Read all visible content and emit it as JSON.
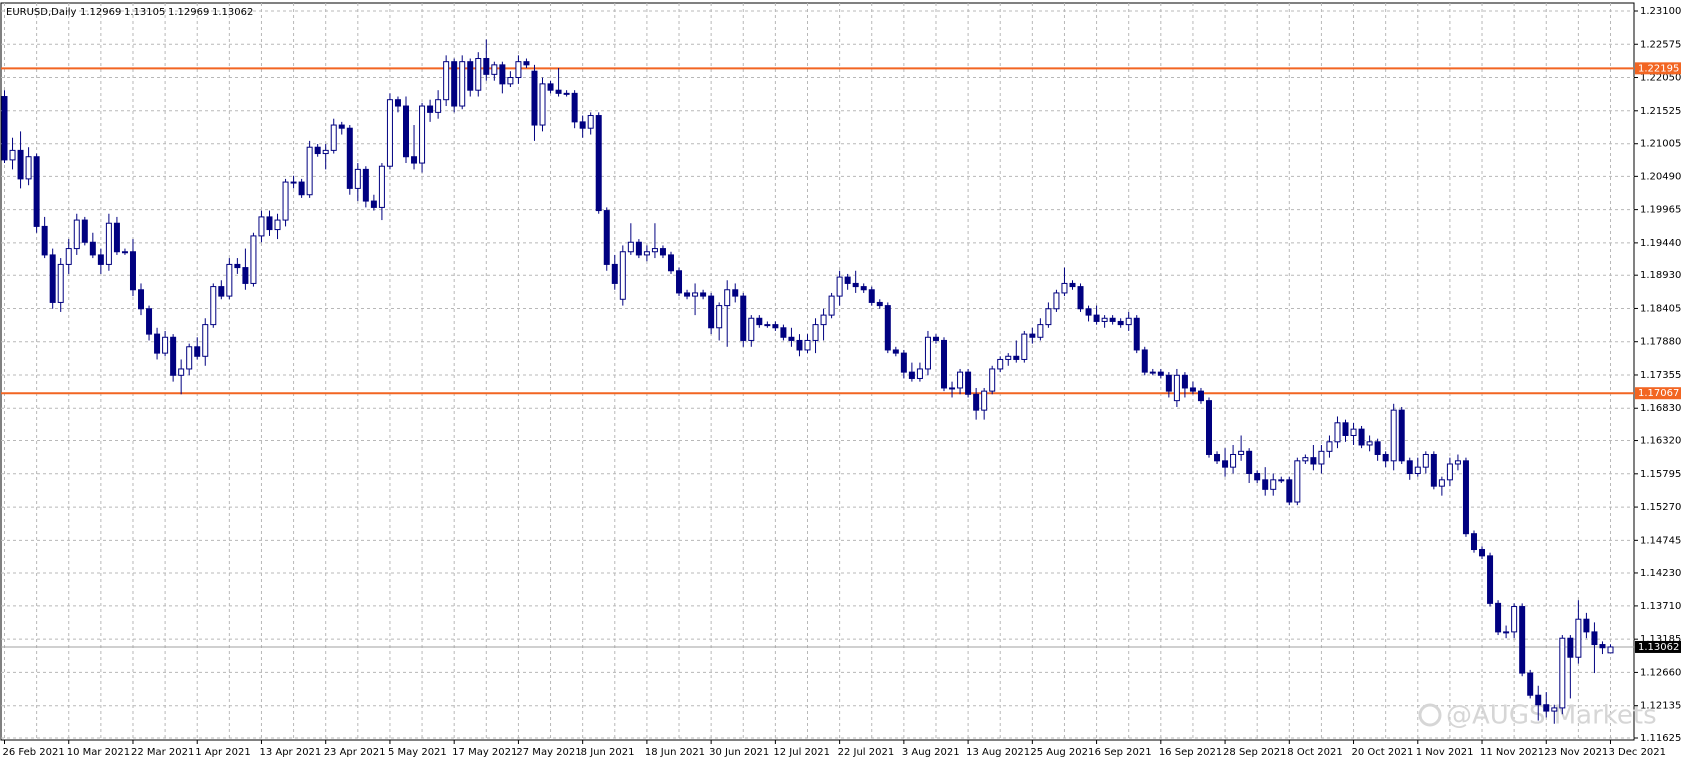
{
  "chart_data": {
    "type": "candlestick",
    "title": "EURUSD,Daily",
    "watermark": "@AUGS Markets",
    "up_color": "#ffffff",
    "down_color": "#000080",
    "wick_color": "#000080",
    "grid": true,
    "ylim": [
      1.11625,
      1.231
    ],
    "yticks": [
      {
        "value": 1.231,
        "label": "1.23100"
      },
      1.22575,
      {
        "value": 1.2205,
        "label": "1.22050"
      },
      1.21525,
      1.21005,
      {
        "value": 1.2049,
        "label": "1.20490"
      },
      1.19965,
      {
        "value": 1.1944,
        "label": "1.19440"
      },
      {
        "value": 1.1893,
        "label": "1.18930"
      },
      1.18405,
      {
        "value": 1.1788,
        "label": "1.17880"
      },
      1.17355,
      {
        "value": 1.1683,
        "label": "1.16830"
      },
      {
        "value": 1.1632,
        "label": "1.16320"
      },
      1.15795,
      {
        "value": 1.1527,
        "label": "1.15270"
      },
      1.14745,
      {
        "value": 1.1423,
        "label": "1.14230"
      },
      {
        "value": 1.1371,
        "label": "1.13710"
      },
      1.13185,
      {
        "value": 1.1266,
        "label": "1.12660"
      },
      1.12135,
      1.11625
    ],
    "hlines": [
      {
        "value": 1.22195,
        "color": "#f26522"
      },
      {
        "value": 1.17067,
        "color": "#f26522"
      }
    ],
    "categories": [
      "26 Feb 2021",
      null,
      null,
      null,
      null,
      null,
      null,
      null,
      "10 Mar 2021",
      null,
      null,
      null,
      null,
      null,
      null,
      null,
      "22 Mar 2021",
      null,
      null,
      null,
      null,
      null,
      null,
      null,
      "1 Apr 2021",
      null,
      null,
      null,
      null,
      null,
      null,
      null,
      "13 Apr 2021",
      null,
      null,
      null,
      null,
      null,
      null,
      null,
      "23 Apr 2021",
      null,
      null,
      null,
      null,
      null,
      null,
      null,
      "5 May 2021",
      null,
      null,
      null,
      null,
      null,
      null,
      null,
      "17 May 2021",
      null,
      null,
      null,
      null,
      null,
      null,
      null,
      "27 May 2021",
      null,
      null,
      null,
      null,
      null,
      null,
      null,
      "8 Jun 2021",
      null,
      null,
      null,
      null,
      null,
      null,
      null,
      "18 Jun 2021",
      null,
      null,
      null,
      null,
      null,
      null,
      null,
      "30 Jun 2021",
      null,
      null,
      null,
      null,
      null,
      null,
      null,
      "12 Jul 2021",
      null,
      null,
      null,
      null,
      null,
      null,
      null,
      "22 Jul 2021",
      null,
      null,
      null,
      null,
      null,
      null,
      null,
      "3 Aug 2021",
      null,
      null,
      null,
      null,
      null,
      null,
      null,
      "13 Aug 2021",
      null,
      null,
      null,
      null,
      null,
      null,
      null,
      "25 Aug 2021",
      null,
      null,
      null,
      null,
      null,
      null,
      null,
      "6 Sep 2021",
      null,
      null,
      null,
      null,
      null,
      null,
      null,
      "16 Sep 2021",
      null,
      null,
      null,
      null,
      null,
      null,
      null,
      "28 Sep 2021",
      null,
      null,
      null,
      null,
      null,
      null,
      null,
      "8 Oct 2021",
      null,
      null,
      null,
      null,
      null,
      null,
      null,
      "20 Oct 2021",
      null,
      null,
      null,
      null,
      null,
      null,
      null,
      "1 Nov 2021",
      null,
      null,
      null,
      null,
      null,
      null,
      null,
      "11 Nov 2021",
      null,
      null,
      null,
      null,
      null,
      null,
      null,
      "23 Nov 2021",
      null,
      null,
      null,
      null,
      null,
      null,
      null,
      "3 Dec 2021"
    ],
    "ohlc": [
      [
        1.2175,
        1.2185,
        1.207,
        1.2075
      ],
      [
        1.2075,
        1.211,
        1.206,
        1.209
      ],
      [
        1.209,
        1.212,
        1.203,
        1.2045
      ],
      [
        1.2045,
        1.2095,
        1.2035,
        1.208
      ],
      [
        1.208,
        1.2085,
        1.196,
        1.197
      ],
      [
        1.197,
        1.1985,
        1.192,
        1.1925
      ],
      [
        1.1925,
        1.1935,
        1.184,
        1.185
      ],
      [
        1.185,
        1.192,
        1.1835,
        1.191
      ],
      [
        1.191,
        1.195,
        1.1895,
        1.1935
      ],
      [
        1.1935,
        1.199,
        1.1925,
        1.198
      ],
      [
        1.198,
        1.1985,
        1.194,
        1.1945
      ],
      [
        1.1945,
        1.196,
        1.192,
        1.1925
      ],
      [
        1.1925,
        1.1935,
        1.1895,
        1.191
      ],
      [
        1.191,
        1.199,
        1.19,
        1.1975
      ],
      [
        1.1975,
        1.1985,
        1.1925,
        1.193
      ],
      [
        1.193,
        1.1935,
        1.1925,
        1.193
      ],
      [
        1.193,
        1.195,
        1.186,
        1.187
      ],
      [
        1.187,
        1.188,
        1.183,
        1.184
      ],
      [
        1.184,
        1.1845,
        1.179,
        1.18
      ],
      [
        1.18,
        1.181,
        1.176,
        1.177
      ],
      [
        1.177,
        1.1805,
        1.1765,
        1.1795
      ],
      [
        1.1795,
        1.18,
        1.1725,
        1.1735
      ],
      [
        1.1735,
        1.176,
        1.1705,
        1.1745
      ],
      [
        1.1745,
        1.1785,
        1.1735,
        1.178
      ],
      [
        1.178,
        1.1795,
        1.176,
        1.1765
      ],
      [
        1.1765,
        1.1825,
        1.175,
        1.1815
      ],
      [
        1.1815,
        1.188,
        1.181,
        1.1875
      ],
      [
        1.1875,
        1.1885,
        1.1855,
        1.186
      ],
      [
        1.186,
        1.192,
        1.1855,
        1.191
      ],
      [
        1.191,
        1.192,
        1.1895,
        1.1905
      ],
      [
        1.1905,
        1.1935,
        1.187,
        1.188
      ],
      [
        1.188,
        1.196,
        1.1875,
        1.1955
      ],
      [
        1.1955,
        1.1995,
        1.1945,
        1.1985
      ],
      [
        1.1985,
        1.1995,
        1.1955,
        1.1965
      ],
      [
        1.1965,
        1.199,
        1.195,
        1.198
      ],
      [
        1.198,
        1.2045,
        1.197,
        1.204
      ],
      [
        1.204,
        1.205,
        1.203,
        1.204
      ],
      [
        1.204,
        1.2045,
        1.2015,
        1.202
      ],
      [
        1.202,
        1.2105,
        1.2015,
        1.2095
      ],
      [
        1.2095,
        1.21,
        1.208,
        1.2085
      ],
      [
        1.2085,
        1.21,
        1.206,
        1.209
      ],
      [
        1.209,
        1.214,
        1.2085,
        1.213
      ],
      [
        1.213,
        1.2135,
        1.2115,
        1.2125
      ],
      [
        1.2125,
        1.213,
        1.202,
        1.203
      ],
      [
        1.203,
        1.207,
        1.201,
        1.206
      ],
      [
        1.206,
        1.2065,
        1.2,
        1.201
      ],
      [
        1.201,
        1.202,
        1.1995,
        1.2
      ],
      [
        1.2,
        1.207,
        1.198,
        1.2065
      ],
      [
        1.2065,
        1.218,
        1.206,
        1.217
      ],
      [
        1.217,
        1.2175,
        1.215,
        1.216
      ],
      [
        1.216,
        1.2175,
        1.207,
        1.208
      ],
      [
        1.208,
        1.213,
        1.206,
        1.207
      ],
      [
        1.207,
        1.2165,
        1.2055,
        1.216
      ],
      [
        1.216,
        1.217,
        1.2135,
        1.215
      ],
      [
        1.215,
        1.2185,
        1.214,
        1.217
      ],
      [
        1.217,
        1.224,
        1.216,
        1.223
      ],
      [
        1.223,
        1.2235,
        1.215,
        1.216
      ],
      [
        1.216,
        1.224,
        1.2155,
        1.223
      ],
      [
        1.223,
        1.2235,
        1.2175,
        1.2185
      ],
      [
        1.2185,
        1.2245,
        1.2175,
        1.2235
      ],
      [
        1.2235,
        1.2265,
        1.22,
        1.221
      ],
      [
        1.221,
        1.223,
        1.22,
        1.2225
      ],
      [
        1.2225,
        1.223,
        1.218,
        1.2195
      ],
      [
        1.2195,
        1.2215,
        1.219,
        1.2205
      ],
      [
        1.2205,
        1.224,
        1.2195,
        1.223
      ],
      [
        1.223,
        1.2235,
        1.222,
        1.2225
      ],
      [
        1.2215,
        1.2225,
        1.2105,
        1.213
      ],
      [
        1.213,
        1.2205,
        1.212,
        1.2195
      ],
      [
        1.2195,
        1.22,
        1.218,
        1.2185
      ],
      [
        1.2185,
        1.222,
        1.2175,
        1.218
      ],
      [
        1.218,
        1.2185,
        1.2175,
        1.218
      ],
      [
        1.218,
        1.2185,
        1.2125,
        1.2135
      ],
      [
        1.2135,
        1.2145,
        1.211,
        1.2125
      ],
      [
        1.2125,
        1.215,
        1.2115,
        1.2145
      ],
      [
        1.2145,
        1.215,
        1.199,
        1.1995
      ],
      [
        1.1995,
        1.2,
        1.19,
        1.191
      ],
      [
        1.191,
        1.1925,
        1.187,
        1.188
      ],
      [
        1.1855,
        1.194,
        1.1845,
        1.193
      ],
      [
        1.193,
        1.1975,
        1.1925,
        1.1945
      ],
      [
        1.1945,
        1.195,
        1.192,
        1.1925
      ],
      [
        1.1925,
        1.194,
        1.1915,
        1.193
      ],
      [
        1.193,
        1.1975,
        1.192,
        1.1935
      ],
      [
        1.1935,
        1.194,
        1.192,
        1.1925
      ],
      [
        1.1925,
        1.193,
        1.1895,
        1.19
      ],
      [
        1.19,
        1.1905,
        1.186,
        1.1865
      ],
      [
        1.1865,
        1.187,
        1.1855,
        1.186
      ],
      [
        1.186,
        1.188,
        1.183,
        1.1865
      ],
      [
        1.1865,
        1.187,
        1.1855,
        1.186
      ],
      [
        1.186,
        1.1865,
        1.18,
        1.181
      ],
      [
        1.181,
        1.185,
        1.179,
        1.1845
      ],
      [
        1.1845,
        1.1885,
        1.178,
        1.187
      ],
      [
        1.187,
        1.188,
        1.185,
        1.186
      ],
      [
        1.186,
        1.1865,
        1.178,
        1.179
      ],
      [
        1.179,
        1.183,
        1.178,
        1.1825
      ],
      [
        1.1825,
        1.183,
        1.181,
        1.1815
      ],
      [
        1.1815,
        1.182,
        1.181,
        1.1815
      ],
      [
        1.1815,
        1.182,
        1.1805,
        1.181
      ],
      [
        1.181,
        1.1815,
        1.179,
        1.1795
      ],
      [
        1.1795,
        1.181,
        1.178,
        1.179
      ],
      [
        1.179,
        1.18,
        1.1765,
        1.1775
      ],
      [
        1.1775,
        1.18,
        1.177,
        1.179
      ],
      [
        1.179,
        1.1825,
        1.177,
        1.1815
      ],
      [
        1.1815,
        1.184,
        1.179,
        1.183
      ],
      [
        1.183,
        1.1865,
        1.1825,
        1.186
      ],
      [
        1.186,
        1.19,
        1.1845,
        1.189
      ],
      [
        1.189,
        1.1895,
        1.187,
        1.188
      ],
      [
        1.188,
        1.19,
        1.1865,
        1.1875
      ],
      [
        1.1875,
        1.188,
        1.1865,
        1.187
      ],
      [
        1.187,
        1.1875,
        1.1845,
        1.185
      ],
      [
        1.185,
        1.1855,
        1.184,
        1.1845
      ],
      [
        1.1845,
        1.185,
        1.177,
        1.1775
      ],
      [
        1.1775,
        1.178,
        1.1765,
        1.177
      ],
      [
        1.177,
        1.1775,
        1.173,
        1.174
      ],
      [
        1.174,
        1.1755,
        1.1725,
        1.173
      ],
      [
        1.173,
        1.1755,
        1.1725,
        1.1745
      ],
      [
        1.1745,
        1.1805,
        1.1735,
        1.1795
      ],
      [
        1.1795,
        1.18,
        1.1785,
        1.179
      ],
      [
        1.179,
        1.1795,
        1.171,
        1.1715
      ],
      [
        1.1715,
        1.1725,
        1.17,
        1.1715
      ],
      [
        1.1715,
        1.1745,
        1.1705,
        1.174
      ],
      [
        1.174,
        1.1745,
        1.17,
        1.1705
      ],
      [
        1.1705,
        1.1715,
        1.1665,
        1.168
      ],
      [
        1.168,
        1.1715,
        1.1665,
        1.171
      ],
      [
        1.171,
        1.175,
        1.1705,
        1.1745
      ],
      [
        1.1745,
        1.1765,
        1.174,
        1.176
      ],
      [
        1.176,
        1.177,
        1.175,
        1.1765
      ],
      [
        1.1765,
        1.179,
        1.1755,
        1.176
      ],
      [
        1.176,
        1.1805,
        1.1755,
        1.18
      ],
      [
        1.18,
        1.181,
        1.1785,
        1.1795
      ],
      [
        1.1795,
        1.1825,
        1.179,
        1.1815
      ],
      [
        1.1815,
        1.185,
        1.181,
        1.184
      ],
      [
        1.184,
        1.187,
        1.1835,
        1.1865
      ],
      [
        1.1865,
        1.1905,
        1.186,
        1.188
      ],
      [
        1.188,
        1.1885,
        1.187,
        1.1875
      ],
      [
        1.1875,
        1.188,
        1.1835,
        1.184
      ],
      [
        1.184,
        1.1845,
        1.182,
        1.183
      ],
      [
        1.183,
        1.1845,
        1.1815,
        1.182
      ],
      [
        1.182,
        1.183,
        1.181,
        1.1825
      ],
      [
        1.1825,
        1.183,
        1.1815,
        1.182
      ],
      [
        1.182,
        1.1825,
        1.181,
        1.1815
      ],
      [
        1.1815,
        1.1835,
        1.1805,
        1.1825
      ],
      [
        1.1825,
        1.183,
        1.177,
        1.1775
      ],
      [
        1.1775,
        1.178,
        1.1735,
        1.174
      ],
      [
        1.174,
        1.1745,
        1.1735,
        1.174
      ],
      [
        1.174,
        1.1745,
        1.173,
        1.1735
      ],
      [
        1.1735,
        1.174,
        1.17,
        1.171
      ],
      [
        1.1695,
        1.1745,
        1.1685,
        1.1735
      ],
      [
        1.1735,
        1.174,
        1.17,
        1.1715
      ],
      [
        1.1715,
        1.1725,
        1.1705,
        1.171
      ],
      [
        1.171,
        1.1715,
        1.169,
        1.1695
      ],
      [
        1.1695,
        1.17,
        1.1605,
        1.161
      ],
      [
        1.161,
        1.1615,
        1.1595,
        1.16
      ],
      [
        1.16,
        1.162,
        1.1575,
        1.159
      ],
      [
        1.159,
        1.1625,
        1.158,
        1.161
      ],
      [
        1.161,
        1.164,
        1.16,
        1.1615
      ],
      [
        1.1615,
        1.162,
        1.1565,
        1.158
      ],
      [
        1.158,
        1.1585,
        1.1565,
        1.157
      ],
      [
        1.157,
        1.159,
        1.1545,
        1.1555
      ],
      [
        1.1555,
        1.158,
        1.1545,
        1.157
      ],
      [
        1.157,
        1.1575,
        1.1565,
        1.157
      ],
      [
        1.157,
        1.1575,
        1.153,
        1.1535
      ],
      [
        1.1535,
        1.1605,
        1.153,
        1.16
      ],
      [
        1.16,
        1.161,
        1.1595,
        1.1605
      ],
      [
        1.1605,
        1.1625,
        1.1585,
        1.1595
      ],
      [
        1.1595,
        1.1625,
        1.158,
        1.1615
      ],
      [
        1.1615,
        1.164,
        1.1605,
        1.163
      ],
      [
        1.163,
        1.167,
        1.162,
        1.166
      ],
      [
        1.166,
        1.1665,
        1.163,
        1.164
      ],
      [
        1.164,
        1.166,
        1.1625,
        1.165
      ],
      [
        1.165,
        1.1655,
        1.162,
        1.1625
      ],
      [
        1.1625,
        1.164,
        1.1615,
        1.163
      ],
      [
        1.163,
        1.1635,
        1.16,
        1.161
      ],
      [
        1.161,
        1.1615,
        1.159,
        1.16
      ],
      [
        1.16,
        1.169,
        1.1585,
        1.168
      ],
      [
        1.168,
        1.1685,
        1.1595,
        1.16
      ],
      [
        1.16,
        1.1605,
        1.157,
        1.158
      ],
      [
        1.158,
        1.1605,
        1.1575,
        1.159
      ],
      [
        1.159,
        1.1615,
        1.158,
        1.161
      ],
      [
        1.161,
        1.1615,
        1.1555,
        1.156
      ],
      [
        1.156,
        1.1575,
        1.1545,
        1.157
      ],
      [
        1.157,
        1.1605,
        1.156,
        1.1595
      ],
      [
        1.1595,
        1.161,
        1.1585,
        1.16
      ],
      [
        1.16,
        1.1605,
        1.148,
        1.1485
      ],
      [
        1.1485,
        1.149,
        1.1455,
        1.146
      ],
      [
        1.146,
        1.1465,
        1.1445,
        1.145
      ],
      [
        1.145,
        1.1455,
        1.137,
        1.1375
      ],
      [
        1.1375,
        1.138,
        1.1325,
        1.133
      ],
      [
        1.133,
        1.134,
        1.132,
        1.133
      ],
      [
        1.133,
        1.1375,
        1.132,
        1.137
      ],
      [
        1.137,
        1.1375,
        1.126,
        1.1265
      ],
      [
        1.1265,
        1.127,
        1.1225,
        1.123
      ],
      [
        1.123,
        1.1245,
        1.119,
        1.1215
      ],
      [
        1.1215,
        1.1235,
        1.1195,
        1.1205
      ],
      [
        1.1205,
        1.1215,
        1.1185,
        1.121
      ],
      [
        1.121,
        1.1325,
        1.12,
        1.132
      ],
      [
        1.132,
        1.1325,
        1.1225,
        1.129
      ],
      [
        1.129,
        1.138,
        1.128,
        1.135
      ],
      [
        1.135,
        1.136,
        1.132,
        1.133
      ],
      [
        1.133,
        1.1345,
        1.1265,
        1.131
      ],
      [
        1.131,
        1.1315,
        1.1295,
        1.1305
      ],
      [
        1.12969,
        1.13105,
        1.12969,
        1.13062
      ]
    ]
  }
}
